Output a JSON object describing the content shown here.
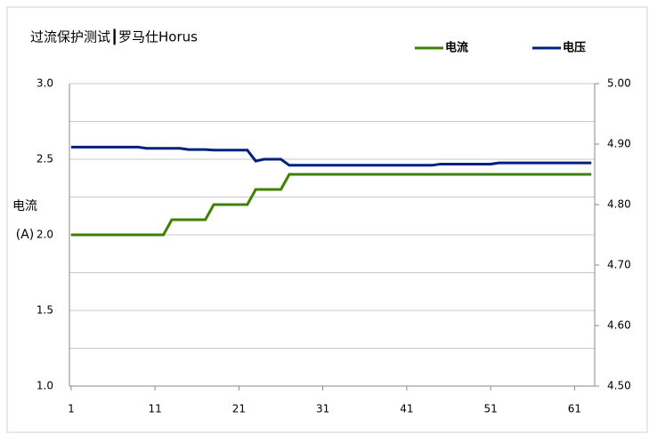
{
  "chart_data": {
    "type": "line",
    "title": "过流保护测试┃罗马仕Horus",
    "y_label": "电流(A)",
    "x": [
      1,
      2,
      3,
      4,
      5,
      6,
      7,
      8,
      9,
      10,
      11,
      12,
      13,
      14,
      15,
      16,
      17,
      18,
      19,
      20,
      21,
      22,
      23,
      24,
      25,
      26,
      27,
      28,
      29,
      30,
      31,
      32,
      33,
      34,
      35,
      36,
      37,
      38,
      39,
      40,
      41,
      42,
      43,
      44,
      45,
      46,
      47,
      48,
      49,
      50,
      51,
      52,
      53,
      54,
      55,
      56,
      57,
      58,
      59,
      60,
      61,
      62,
      63
    ],
    "xlim": [
      0.8,
      63.4
    ],
    "xticks": [
      1,
      11,
      21,
      31,
      41,
      51,
      61
    ],
    "ylim": [
      1,
      3
    ],
    "yticks": [
      {
        "value": 1,
        "label": "1.0"
      },
      1.5,
      {
        "value": 2,
        "label": "2.0"
      },
      2.5,
      {
        "value": 3,
        "label": "3.0"
      }
    ],
    "yminor": [
      1.25,
      1.75,
      2.25,
      2.75
    ],
    "y2lim": [
      4.5,
      5
    ],
    "y2ticks": [
      {
        "value": 4.5,
        "label": "4.50"
      },
      {
        "value": 4.6,
        "label": "4.60"
      },
      {
        "value": 4.7,
        "label": "4.70"
      },
      {
        "value": 4.8,
        "label": "4.80"
      },
      {
        "value": 4.9,
        "label": "4.90"
      },
      {
        "value": 5,
        "label": "5.00"
      }
    ],
    "grid": true,
    "legend": "top-right",
    "series": [
      {
        "name": "电流",
        "color": "#3f8000",
        "values": [
          2.0,
          2.0,
          2.0,
          2.0,
          2.0,
          2.0,
          2.0,
          2.0,
          2.0,
          2.0,
          2.0,
          2.0,
          2.1,
          2.1,
          2.1,
          2.1,
          2.1,
          2.2,
          2.2,
          2.2,
          2.2,
          2.2,
          2.3,
          2.3,
          2.3,
          2.3,
          2.4,
          2.4,
          2.4,
          2.4,
          2.4,
          2.4,
          2.4,
          2.4,
          2.4,
          2.4,
          2.4,
          2.4,
          2.4,
          2.4,
          2.4,
          2.4,
          2.4,
          2.4,
          2.4,
          2.4,
          2.4,
          2.4,
          2.4,
          2.4,
          2.4,
          2.4,
          2.4,
          2.4,
          2.4,
          2.4,
          2.4,
          2.4,
          2.4,
          2.4,
          2.4,
          2.4,
          2.4
        ]
      },
      {
        "name": "电压",
        "color": "#002080",
        "axis": "y2",
        "values": [
          4.895,
          4.895,
          4.895,
          4.895,
          4.895,
          4.895,
          4.895,
          4.895,
          4.895,
          4.893,
          4.893,
          4.893,
          4.893,
          4.893,
          4.891,
          4.891,
          4.891,
          4.89,
          4.89,
          4.89,
          4.89,
          4.89,
          4.872,
          4.875,
          4.875,
          4.875,
          4.865,
          4.865,
          4.865,
          4.865,
          4.865,
          4.865,
          4.865,
          4.865,
          4.865,
          4.865,
          4.865,
          4.865,
          4.865,
          4.865,
          4.865,
          4.865,
          4.865,
          4.865,
          4.867,
          4.867,
          4.867,
          4.867,
          4.867,
          4.867,
          4.867,
          4.869,
          4.869,
          4.869,
          4.869,
          4.869,
          4.869,
          4.869,
          4.869,
          4.869,
          4.869,
          4.869,
          4.869
        ]
      }
    ]
  }
}
